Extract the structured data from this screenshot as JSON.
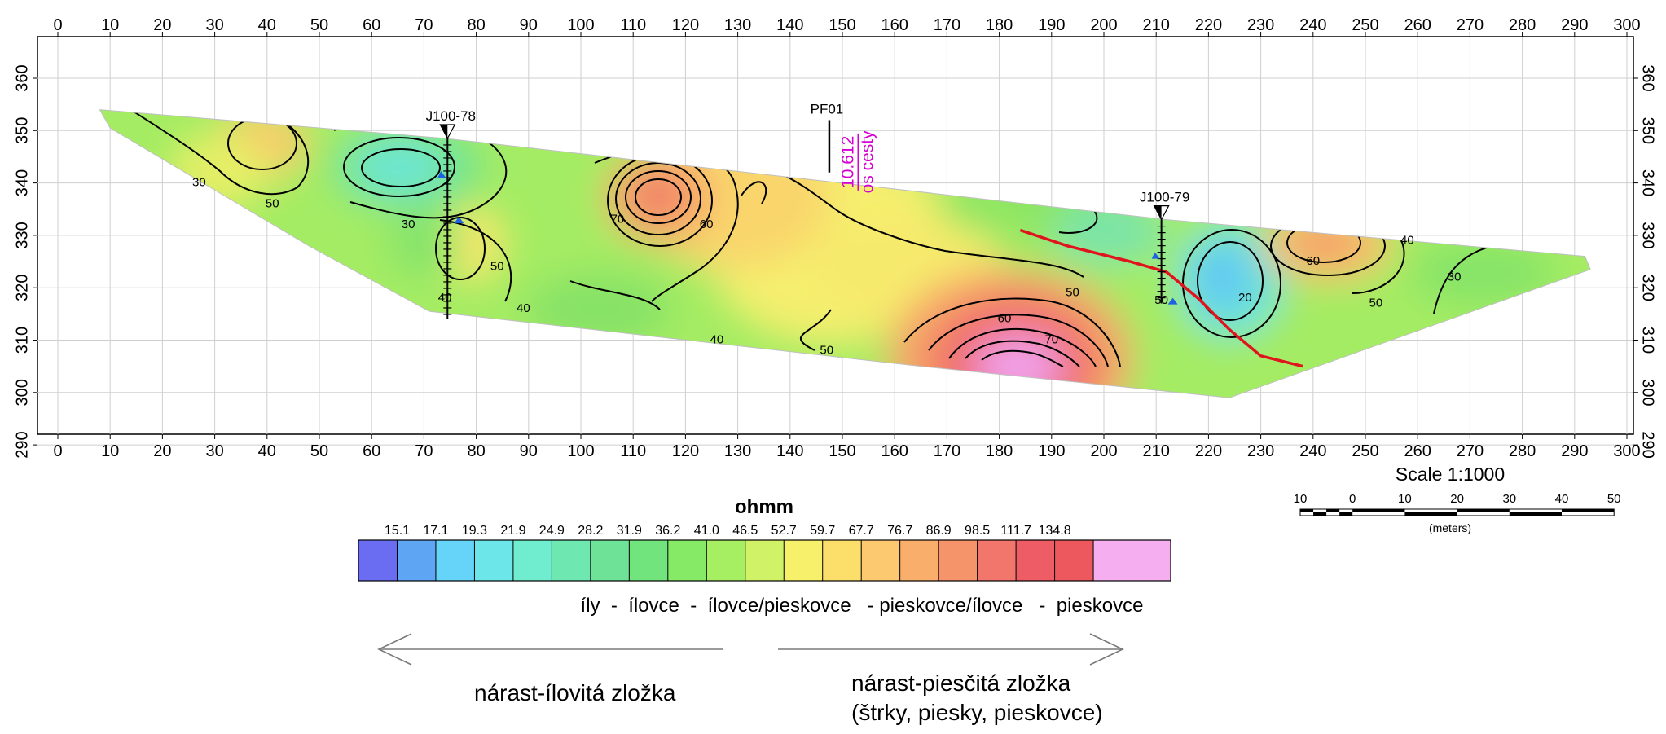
{
  "chart_data": {
    "type": "heatmap",
    "x": [
      0,
      10,
      20,
      30,
      40,
      50,
      60,
      70,
      80,
      90,
      100,
      110,
      120,
      130,
      140,
      150,
      160,
      170,
      180,
      190,
      200,
      210,
      220,
      230,
      240,
      250,
      260,
      270,
      280,
      290,
      300
    ],
    "y": [
      360,
      350,
      340,
      330,
      320,
      310,
      300,
      290
    ],
    "xlim": [
      -1,
      302
    ],
    "ylim": [
      287,
      366
    ],
    "grid": true,
    "section_outline": [
      [
        8,
        354
      ],
      [
        74,
        348.5
      ],
      [
        212,
        333
      ],
      [
        292,
        326
      ],
      [
        293,
        323.5
      ],
      [
        224,
        299
      ],
      [
        165,
        305
      ],
      [
        71,
        315.5
      ],
      [
        48,
        328
      ],
      [
        10,
        350.5
      ]
    ],
    "contour_labels": [
      {
        "text": "30",
        "x": 27,
        "y": 340
      },
      {
        "text": "50",
        "x": 41,
        "y": 336
      },
      {
        "text": "30",
        "x": 67,
        "y": 332
      },
      {
        "text": "50",
        "x": 84,
        "y": 324
      },
      {
        "text": "40",
        "x": 89,
        "y": 316
      },
      {
        "text": "40",
        "x": 74,
        "y": 318
      },
      {
        "text": "70",
        "x": 107,
        "y": 333
      },
      {
        "text": "60",
        "x": 124,
        "y": 332
      },
      {
        "text": "40",
        "x": 126,
        "y": 310
      },
      {
        "text": "50",
        "x": 147,
        "y": 308
      },
      {
        "text": "60",
        "x": 181,
        "y": 314
      },
      {
        "text": "50",
        "x": 194,
        "y": 319
      },
      {
        "text": "70",
        "x": 190,
        "y": 310
      },
      {
        "text": "50",
        "x": 211,
        "y": 317.5
      },
      {
        "text": "20",
        "x": 227,
        "y": 318
      },
      {
        "text": "60",
        "x": 240,
        "y": 325
      },
      {
        "text": "40",
        "x": 258,
        "y": 329
      },
      {
        "text": "50",
        "x": 252,
        "y": 317
      },
      {
        "text": "30",
        "x": 267,
        "y": 322
      }
    ],
    "boreholes": [
      {
        "name": "J100-78",
        "x": 74.5,
        "top": 348.5,
        "bottom": 314
      },
      {
        "name": "J100-79",
        "x": 211,
        "top": 333,
        "bottom": 317
      }
    ],
    "pf_marker": {
      "name": "PF01",
      "x": 147.5,
      "top": 352,
      "bottom": 342
    },
    "road_axis": {
      "value": "10.612",
      "label": "os cesty",
      "x": 153,
      "y": 351
    },
    "fault_line": [
      [
        184,
        331
      ],
      [
        193,
        328
      ],
      [
        205,
        325
      ],
      [
        212,
        323
      ],
      [
        218,
        318
      ],
      [
        224,
        312
      ],
      [
        230,
        307
      ],
      [
        238,
        305
      ]
    ],
    "colorbar": {
      "title": "ohmm",
      "tick_labels": [
        "15.1",
        "17.1",
        "19.3",
        "21.9",
        "24.9",
        "28.2",
        "31.9",
        "36.2",
        "41.0",
        "46.5",
        "52.7",
        "59.7",
        "67.7",
        "76.7",
        "86.9",
        "98.5",
        "111.7",
        "134.8"
      ],
      "colors": [
        "#6a6cf2",
        "#5ea6f4",
        "#66d4f8",
        "#6ce6e9",
        "#70ecce",
        "#6ee8b0",
        "#6ee296",
        "#72e47e",
        "#86ea66",
        "#a6ee62",
        "#cff266",
        "#f6f06a",
        "#fbdf6a",
        "#fcc870",
        "#f9ae6c",
        "#f5946a",
        "#f2766c",
        "#ee5c66",
        "#ec585d",
        "#f5aef0",
        "#f5aef0"
      ],
      "dividers": [
        1,
        2,
        3,
        4,
        5,
        6,
        7,
        8,
        9,
        10,
        11,
        12,
        13,
        14,
        15,
        16,
        17,
        18,
        19
      ]
    },
    "scale": {
      "title": "Scale 1:1000",
      "ticks": [
        "10",
        "0",
        "10",
        "20",
        "30",
        "40",
        "50"
      ],
      "unit": "(meters)"
    },
    "legend_text": "íly  -  ílovce  -  ílovce/pieskovce   - pieskovce/ílovce   -  pieskovce",
    "left_arrow_text": "nárast-ílovitá zložka",
    "right_arrow_text": [
      "nárast-piesčitá zložka",
      "(štrky, piesky, pieskovce)"
    ]
  },
  "colors": {
    "frame": "#000000",
    "grid": "#cfcfcf",
    "contour": "#000000",
    "fault": "#e0141c",
    "annotation_magenta": "#d400d4",
    "water": "#1e62e0",
    "arrow": "#7a7a7a"
  }
}
